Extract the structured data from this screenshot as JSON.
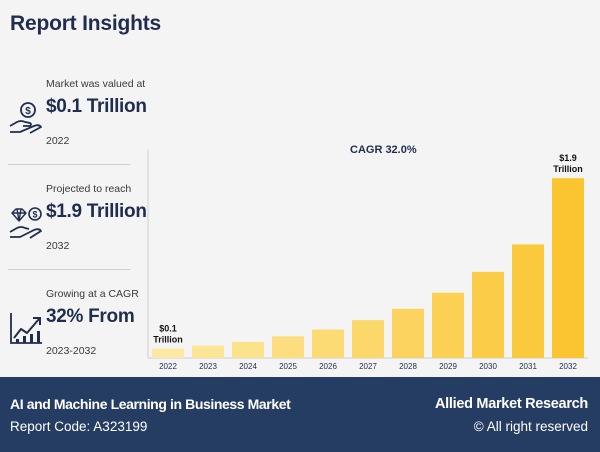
{
  "page": {
    "title": "Report Insights"
  },
  "stats": [
    {
      "label": "Market was valued at",
      "value": "$0.1 Trillion",
      "year": "2022",
      "icon": "money-hand-icon"
    },
    {
      "label": "Projected to reach",
      "value": "$1.9 Trillion",
      "year": "2032",
      "icon": "diamond-hand-icon"
    },
    {
      "label": "Growing at a CAGR",
      "value": "32% From",
      "year": "2023-2032",
      "icon": "growth-chart-icon"
    }
  ],
  "colors": {
    "bar_light": "#fde9a3",
    "bar_dark": "#fbc531",
    "navy": "#1f2d4f",
    "footer_bg": "#263d63"
  },
  "chart_data": {
    "type": "bar",
    "title": "CAGR 32.0%",
    "categories": [
      "2022",
      "2023",
      "2024",
      "2025",
      "2026",
      "2027",
      "2028",
      "2029",
      "2030",
      "2031",
      "2032"
    ],
    "values": [
      0.1,
      0.13,
      0.17,
      0.23,
      0.3,
      0.4,
      0.52,
      0.69,
      0.91,
      1.2,
      1.9
    ],
    "ylim": [
      0,
      2.05
    ],
    "xlabel": "",
    "ylabel": "",
    "annotations": [
      {
        "index": 0,
        "lines": [
          "$0.1",
          "Trillion"
        ]
      },
      {
        "index": 10,
        "lines": [
          "$1.9",
          "Trillion"
        ]
      }
    ]
  },
  "footer": {
    "market_name": "AI and Machine Learning in Business Market",
    "report_code": "Report Code: A323199",
    "brand": "Allied Market Research",
    "rights": "© All right reserved"
  }
}
